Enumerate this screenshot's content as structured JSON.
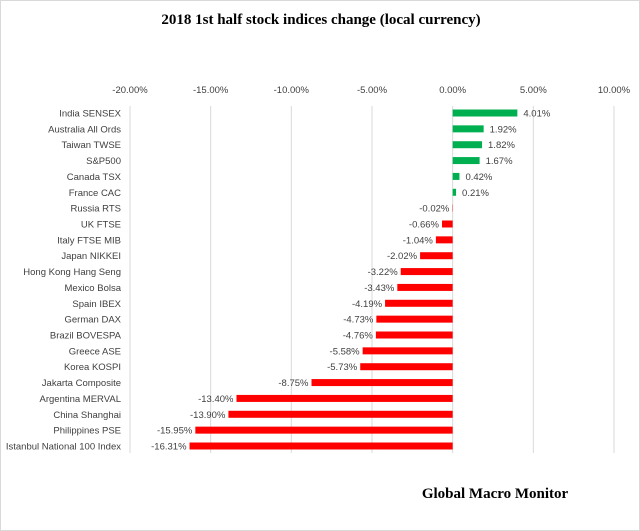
{
  "chart_data": {
    "type": "bar",
    "orientation": "horizontal",
    "title": "2018 1st half stock indices change (local currency)",
    "xlabel": "",
    "ylabel": "",
    "xlim": [
      -20,
      10
    ],
    "x_ticks": [
      "-20.00%",
      "-15.00%",
      "-10.00%",
      "-5.00%",
      "0.00%",
      "5.00%",
      "10.00%"
    ],
    "x_axis_position": "top",
    "grid": true,
    "legend": "none",
    "categories": [
      "India SENSEX",
      "Australia All Ords",
      "Taiwan TWSE",
      "S&P500",
      "Canada TSX",
      "France CAC",
      "Russia RTS",
      "UK FTSE",
      "Italy FTSE MIB",
      "Japan NIKKEI",
      "Hong Kong Hang Seng",
      "Mexico Bolsa",
      "Spain IBEX",
      "German DAX",
      "Brazil BOVESPA",
      "Greece ASE",
      "Korea KOSPI",
      "Jakarta Composite",
      "Argentina MERVAL",
      "China Shanghai",
      "Philippines PSE",
      "Istanbul National 100 Index"
    ],
    "values": [
      4.01,
      1.92,
      1.82,
      1.67,
      0.42,
      0.21,
      -0.02,
      -0.66,
      -1.04,
      -2.02,
      -3.22,
      -3.43,
      -4.19,
      -4.73,
      -4.76,
      -5.58,
      -5.73,
      -8.75,
      -13.4,
      -13.9,
      -15.95,
      -16.31
    ],
    "data_labels": [
      "4.01%",
      "1.92%",
      "1.82%",
      "1.67%",
      "0.42%",
      "0.21%",
      "-0.02%",
      "-0.66%",
      "-1.04%",
      "-2.02%",
      "-3.22%",
      "-3.43%",
      "-4.19%",
      "-4.73%",
      "-4.76%",
      "-5.58%",
      "-5.73%",
      "-8.75%",
      "-13.40%",
      "-13.90%",
      "-15.95%",
      "-16.31%"
    ],
    "colors": {
      "positive": "#00b050",
      "negative": "#ff0000",
      "grid": "#d9d9d9"
    }
  },
  "footer": {
    "brand": "Global Macro Monitor"
  }
}
